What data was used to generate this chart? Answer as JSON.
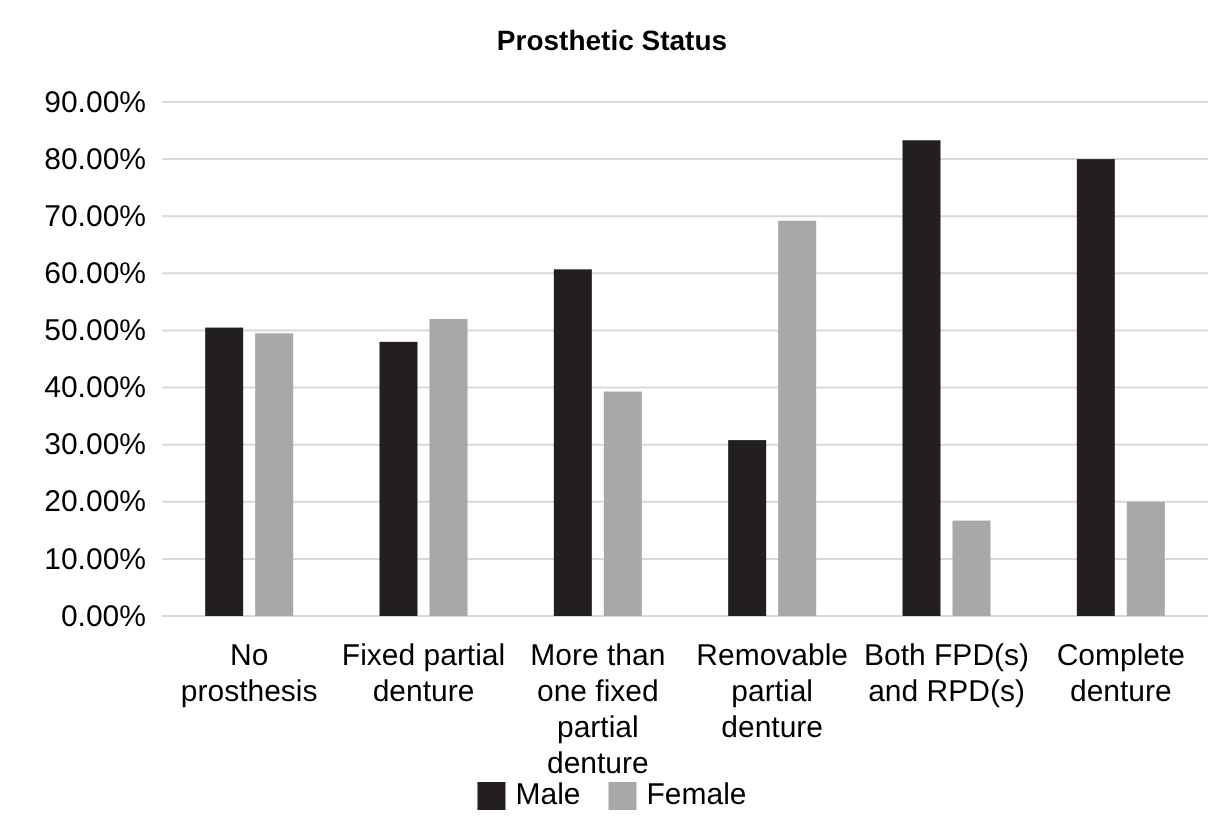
{
  "chart_data": {
    "type": "bar",
    "title": "Prosthetic Status",
    "categories": [
      "No prosthesis",
      "Fixed partial denture",
      "More than one fixed partial denture",
      "Removable partial denture",
      "Both FPD(s) and RPD(s)",
      "Complete denture"
    ],
    "series": [
      {
        "name": "Male",
        "color": "#231f20",
        "values": [
          50.5,
          48.0,
          60.7,
          30.8,
          83.3,
          80.0
        ]
      },
      {
        "name": "Female",
        "color": "#a7a8aa",
        "values": [
          49.5,
          52.0,
          39.3,
          69.2,
          16.7,
          20.0
        ]
      }
    ],
    "ylim": [
      0,
      90
    ],
    "yticks": [
      {
        "value": 0,
        "label": "0.00%"
      },
      {
        "value": 10,
        "label": "10.00%"
      },
      {
        "value": 20,
        "label": "20.00%"
      },
      {
        "value": 30,
        "label": "30.00%"
      },
      {
        "value": 40,
        "label": "40.00%"
      },
      {
        "value": 50,
        "label": "50.00%"
      },
      {
        "value": 60,
        "label": "60.00%"
      },
      {
        "value": 70,
        "label": "70.00%"
      },
      {
        "value": 80,
        "label": "80.00%"
      },
      {
        "value": 90,
        "label": "90.00%"
      }
    ],
    "grid": "y",
    "legend": "bottom"
  }
}
